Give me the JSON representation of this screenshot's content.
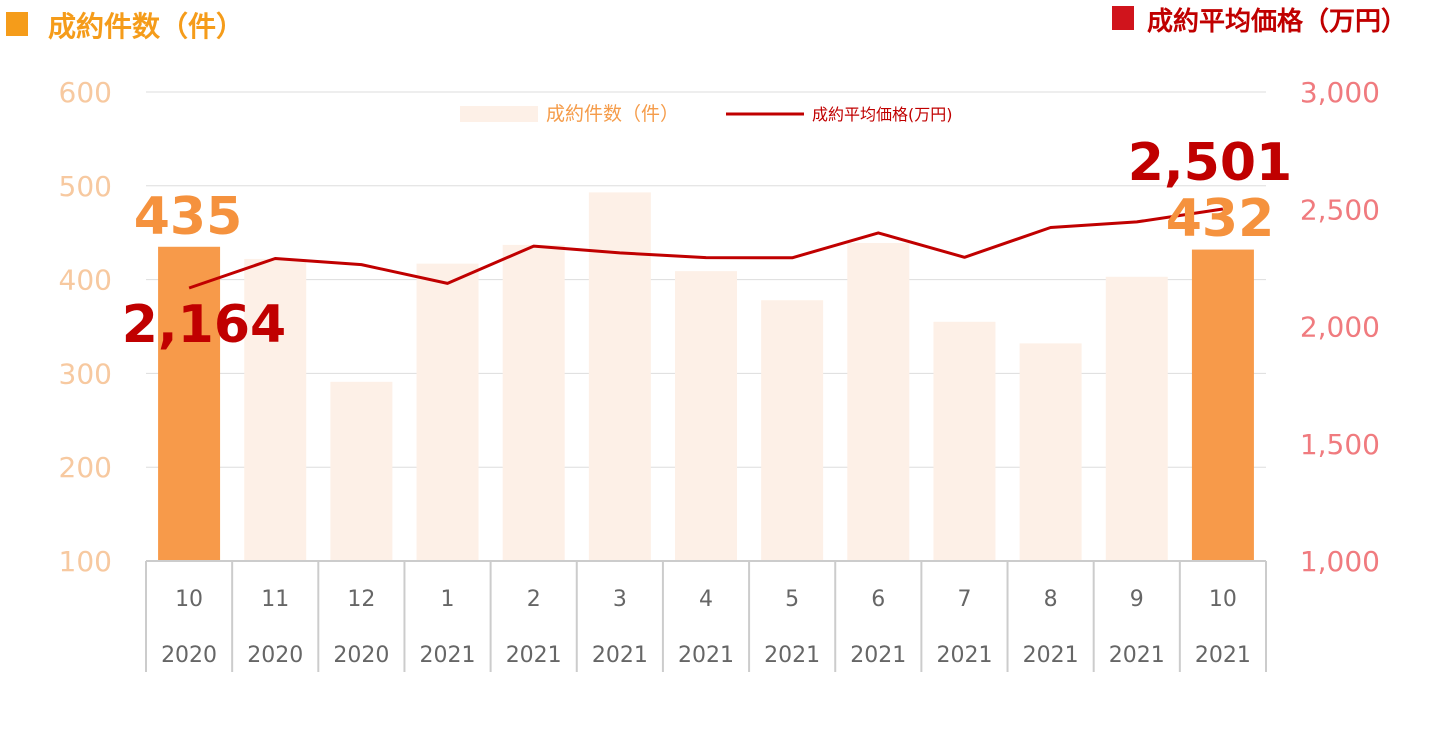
{
  "chart_data": {
    "type": "bar",
    "title_left": "成約件数（件）",
    "title_right": "成約平均価格（万円）",
    "categories": [
      {
        "month": "10",
        "year": "2020"
      },
      {
        "month": "11",
        "year": "2020"
      },
      {
        "month": "12",
        "year": "2020"
      },
      {
        "month": "1",
        "year": "2021"
      },
      {
        "month": "2",
        "year": "2021"
      },
      {
        "month": "3",
        "year": "2021"
      },
      {
        "month": "4",
        "year": "2021"
      },
      {
        "month": "5",
        "year": "2021"
      },
      {
        "month": "6",
        "year": "2021"
      },
      {
        "month": "7",
        "year": "2021"
      },
      {
        "month": "8",
        "year": "2021"
      },
      {
        "month": "9",
        "year": "2021"
      },
      {
        "month": "10",
        "year": "2021"
      }
    ],
    "series": [
      {
        "name": "成約件数（件）",
        "type": "bar",
        "axis": "left",
        "values": [
          435,
          422,
          291,
          417,
          437,
          493,
          409,
          378,
          439,
          355,
          332,
          403,
          432
        ]
      },
      {
        "name": "成約平均価格(万円)",
        "type": "line",
        "axis": "right",
        "values": [
          2164,
          2290,
          2264,
          2184,
          2343,
          2314,
          2294,
          2293,
          2399,
          2295,
          2422,
          2446,
          2501
        ]
      }
    ],
    "left_axis": {
      "ylim": [
        100,
        600
      ],
      "ticks": [
        "100",
        "200",
        "300",
        "400",
        "500",
        "600"
      ]
    },
    "right_axis": {
      "ylim": [
        1000,
        3000
      ],
      "ticks": [
        "1,000",
        "1,500",
        "2,000",
        "2,500",
        "3,000"
      ]
    },
    "highlighted_bars": [
      0,
      12
    ],
    "data_labels": {
      "bar_first": "435",
      "bar_last": "432",
      "line_first": "2,164",
      "line_last": "2,501"
    },
    "legend_position": "top-center",
    "grid": true,
    "colors": {
      "bar_highlight": "#f79a4a",
      "bar_muted": "#fdf0e7",
      "line": "#c00000",
      "left_axis_ticks": "#f7c9a0",
      "right_axis_ticks": "#f07b7f",
      "left_title": "#f59c1a",
      "right_title": "#c00000",
      "gridline": "#dddddd"
    }
  }
}
